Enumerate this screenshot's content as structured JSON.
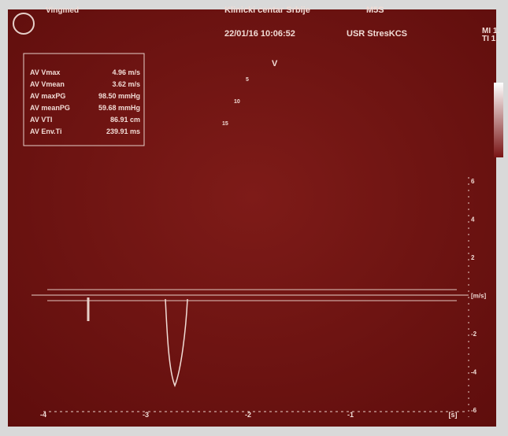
{
  "header": {
    "system": "Vingmed",
    "hospital": "Klinicki centar Srbije",
    "datetime": "22/01/16 10:06:52",
    "probe": "M5S",
    "preset": "USR StresKCS",
    "mi": "MI 1.",
    "ti": "TI 1."
  },
  "measurements": {
    "rows": [
      [
        "AV Vmax",
        "4.96 m/s"
      ],
      [
        "AV Vmean",
        "3.62 m/s"
      ],
      [
        "AV maxPG",
        "98.50 mmHg"
      ],
      [
        "AV meanPG",
        "59.68 mmHg"
      ],
      [
        "AV VTI",
        "86.91 cm"
      ],
      [
        "AV Env.Ti",
        "239.91 ms"
      ]
    ]
  },
  "image_labels": {
    "view": "V",
    "depths": [
      "5",
      "10",
      "15"
    ]
  },
  "velocity_scale": {
    "labels": [
      "6",
      "4",
      "2",
      "[m/s]",
      "-2",
      "-4",
      "-6"
    ]
  },
  "time_scale": {
    "labels": [
      "-4",
      "-3",
      "-2",
      "-1",
      "[s]"
    ]
  }
}
